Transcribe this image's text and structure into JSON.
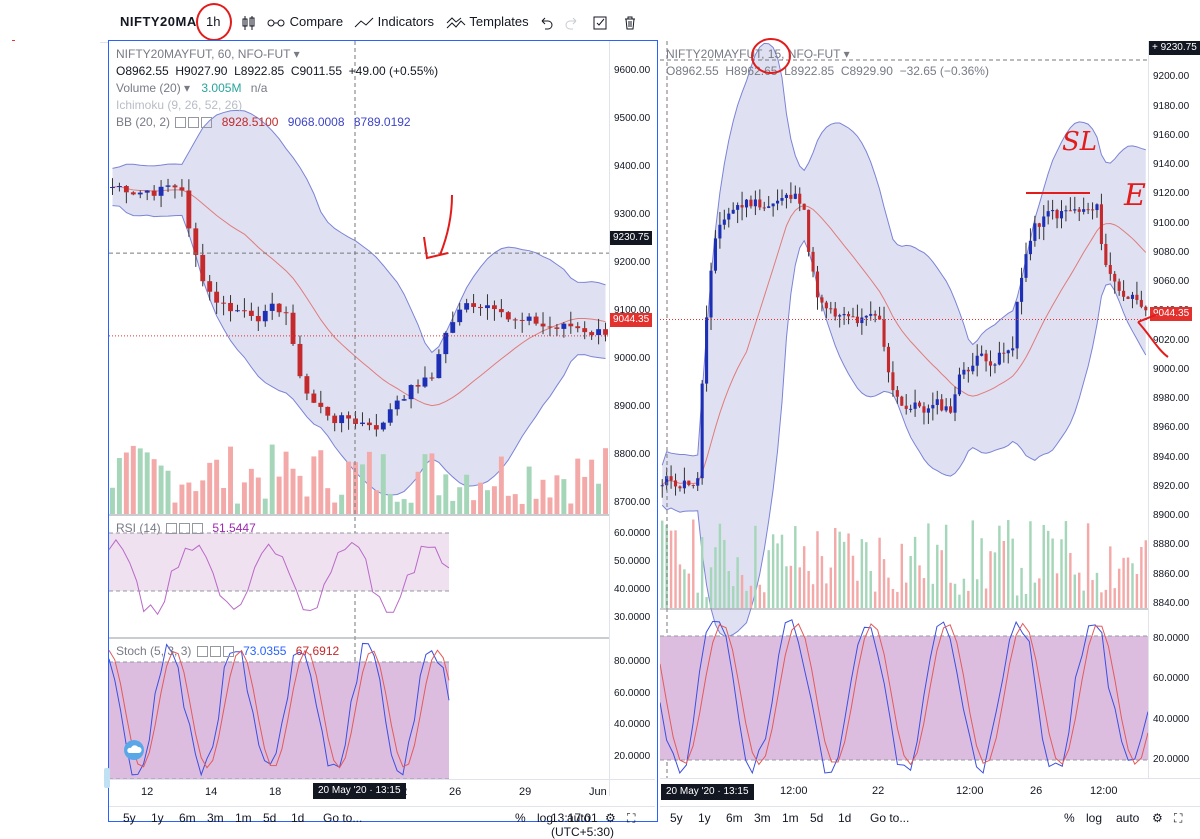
{
  "toolbar": {
    "symbol": "NIFTY20MA",
    "interval": "1h",
    "compare": "Compare",
    "indicators": "Indicators",
    "templates": "Templates"
  },
  "left": {
    "title": "NIFTY20MAYFUT, 60, NFO-FUT",
    "ohlc": {
      "o": "O8962.55",
      "h": "H9027.90",
      "l": "L8922.85",
      "c": "C9011.55",
      "chg": "+49.00 (+0.55%)"
    },
    "volume": {
      "label": "Volume (20)",
      "value": "3.005M",
      "na": "n/a"
    },
    "ichimoku": {
      "label": "Ichimoku (9, 26, 52, 26)"
    },
    "bb": {
      "label": "BB (20, 2)",
      "basis": "8928.5100",
      "upper": "9068.0008",
      "lower": "8789.0192"
    },
    "price_ticks": [
      "9600.00",
      "9500.00",
      "9400.00",
      "9300.00",
      "9200.00",
      "9100.00",
      "9000.00",
      "8900.00",
      "8800.00",
      "8700.00"
    ],
    "crosshair_price": "9230.75",
    "last_price": "9044.35",
    "rsi": {
      "label": "RSI (14)",
      "value": "51.5447",
      "ticks": [
        "60.0000",
        "50.0000",
        "40.0000",
        "30.0000"
      ]
    },
    "stoch": {
      "label": "Stoch (5, 3, 3)",
      "k": "73.0355",
      "d": "67.6912",
      "ticks": [
        "80.0000",
        "60.0000",
        "40.0000",
        "20.0000"
      ]
    },
    "time_ticks": [
      "12",
      "14",
      "18",
      "22",
      "26",
      "29",
      "Jun"
    ],
    "crosshair_time": "20 May '20 · 13:15",
    "bottom": {
      "ranges": [
        "5y",
        "1y",
        "6m",
        "3m",
        "1m",
        "5d",
        "1d"
      ],
      "goto": "Go to...",
      "clock": "13:17:01 (UTC+5:30)",
      "pct": "%",
      "log": "log",
      "auto": "auto"
    }
  },
  "right": {
    "title": "NIFTY20MAYFUT, 15, NFO-FUT",
    "ohlc": {
      "o": "O8962.55",
      "h": "H8962.65",
      "l": "L8922.85",
      "c": "C8929.90",
      "chg": "−32.65 (−0.36%)"
    },
    "price_ticks": [
      "9220.00",
      "9200.00",
      "9180.00",
      "9160.00",
      "9140.00",
      "9120.00",
      "9100.00",
      "9080.00",
      "9060.00",
      "9040.00",
      "9020.00",
      "9000.00",
      "8980.00",
      "8960.00",
      "8940.00",
      "8920.00",
      "8900.00",
      "8880.00",
      "8860.00",
      "8840.00"
    ],
    "crosshair_price": "9230.75",
    "last_price": "9044.35",
    "stoch_ticks": [
      "80.0000",
      "60.0000",
      "40.0000",
      "20.0000"
    ],
    "time_ticks": [
      "12:00",
      "22",
      "12:00",
      "26",
      "12:00"
    ],
    "crosshair_time": "20 May '20 · 13:15",
    "bottom": {
      "ranges": [
        "5y",
        "1y",
        "6m",
        "3m",
        "1m",
        "5d",
        "1d"
      ],
      "goto": "Go to...",
      "pct": "%",
      "log": "log",
      "auto": "auto"
    },
    "annotations": {
      "sl": "SL",
      "e": "E"
    }
  },
  "colors": {
    "up": "#1c2fb5",
    "down": "#c4292b",
    "band": "#b8bde3",
    "bandLine": "#7b83d6",
    "basis": "#e07b7b",
    "rsiBand": "#efe1f0",
    "stochBand": "#dcbde0",
    "volUp": "#a5d6b9",
    "volDown": "#f4a9a9",
    "pen": "#e21b1b"
  }
}
